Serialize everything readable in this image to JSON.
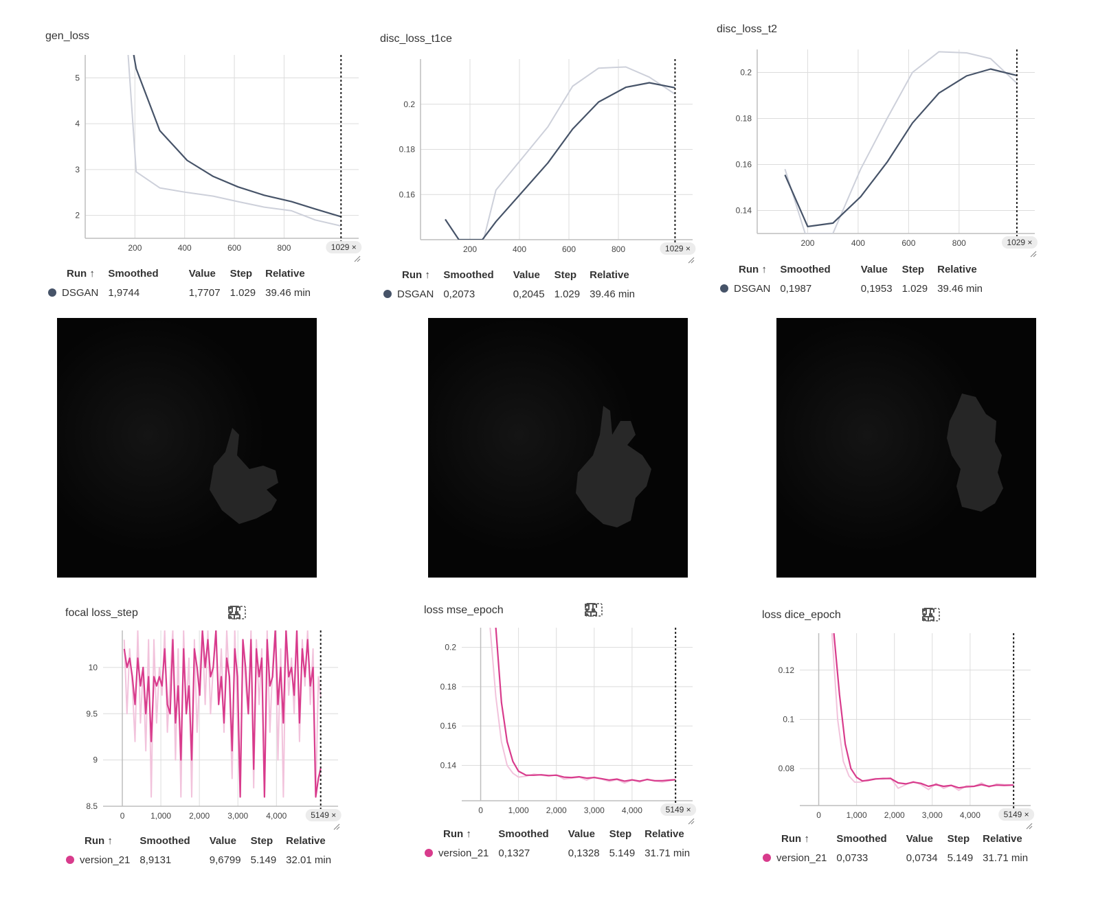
{
  "colors": {
    "dark_line": "#465368",
    "dark_light": "#cdd0da",
    "pink_line": "#d83b8c",
    "pink_light": "#f2c3dc"
  },
  "panels": [
    {
      "id": "gen",
      "title": "gen_loss",
      "step_badge": "1029 ×",
      "stats": {
        "run": "DSGAN",
        "smoothed": "1,9744",
        "value": "1,7707",
        "step": "1.029",
        "relative": "39.46 min"
      }
    },
    {
      "id": "t1ce",
      "title": "disc_loss_t1ce",
      "step_badge": "1029 ×",
      "stats": {
        "run": "DSGAN",
        "smoothed": "0,2073",
        "value": "0,2045",
        "step": "1.029",
        "relative": "39.46 min"
      }
    },
    {
      "id": "t2",
      "title": "disc_loss_t2",
      "step_badge": "1029 ×",
      "stats": {
        "run": "DSGAN",
        "smoothed": "0,1987",
        "value": "0,1953",
        "step": "1.029",
        "relative": "39.46 min"
      }
    },
    {
      "id": "focal",
      "title": "focal loss_step",
      "step_badge": "5149 ×",
      "stats": {
        "run": "version_21",
        "smoothed": "8,9131",
        "value": "9,6799",
        "step": "5.149",
        "relative": "32.01 min"
      }
    },
    {
      "id": "mse",
      "title": "loss mse_epoch",
      "step_badge": "5149 ×",
      "stats": {
        "run": "version_21",
        "smoothed": "0,1327",
        "value": "0,1328",
        "step": "5.149",
        "relative": "31.71 min"
      }
    },
    {
      "id": "dice",
      "title": "loss dice_epoch",
      "step_badge": "5149 ×",
      "stats": {
        "run": "version_21",
        "smoothed": "0,0733",
        "value": "0,0734",
        "step": "5.149",
        "relative": "31.71 min"
      }
    }
  ],
  "table_headers": {
    "run": "Run ↑",
    "smoothed": "Smoothed",
    "value": "Value",
    "step": "Step",
    "relative": "Relative"
  },
  "toolbar_icons": [
    "fit-domain-icon",
    "pin-icon",
    "fullscreen-icon",
    "more-vert-icon"
  ],
  "chart_data": [
    {
      "type": "line",
      "title": "gen_loss",
      "xlim": [
        0,
        1100
      ],
      "ylim": [
        1.5,
        5.5
      ],
      "xticks": [
        200,
        400,
        600,
        800
      ],
      "yticks": [
        2,
        3,
        4,
        5
      ],
      "series": [
        {
          "name": "DSGAN",
          "role": "raw",
          "x": [
            160,
            205,
            300,
            410,
            515,
            615,
            720,
            830,
            925,
            1029
          ],
          "y": [
            6.5,
            2.95,
            2.6,
            2.5,
            2.42,
            2.3,
            2.18,
            2.1,
            1.9,
            1.77
          ]
        },
        {
          "name": "DSGAN",
          "role": "smoothed",
          "x": [
            195,
            205,
            300,
            410,
            515,
            615,
            720,
            830,
            925,
            1029
          ],
          "y": [
            5.5,
            5.2,
            3.85,
            3.2,
            2.85,
            2.62,
            2.44,
            2.3,
            2.14,
            1.97
          ]
        }
      ],
      "marker_step": 1029
    },
    {
      "type": "line",
      "title": "disc_loss_t1ce",
      "xlim": [
        0,
        1100
      ],
      "ylim": [
        0.14,
        0.22
      ],
      "xticks": [
        200,
        400,
        600,
        800
      ],
      "yticks": [
        0.16,
        0.18,
        0.2
      ],
      "series": [
        {
          "name": "DSGAN",
          "role": "raw",
          "x": [
            255,
            305,
            410,
            515,
            615,
            720,
            830,
            925,
            1029
          ],
          "y": [
            0.14,
            0.162,
            0.176,
            0.19,
            0.208,
            0.216,
            0.2165,
            0.212,
            0.2045
          ]
        },
        {
          "name": "DSGAN",
          "role": "smoothed",
          "x": [
            100,
            155,
            250,
            305,
            410,
            515,
            615,
            720,
            830,
            925,
            1029
          ],
          "y": [
            0.149,
            0.14,
            0.14,
            0.148,
            0.161,
            0.174,
            0.189,
            0.201,
            0.2075,
            0.2095,
            0.2073
          ]
        }
      ],
      "marker_step": 1029
    },
    {
      "type": "line",
      "title": "disc_loss_t2",
      "xlim": [
        0,
        1100
      ],
      "ylim": [
        0.13,
        0.21
      ],
      "xticks": [
        200,
        400,
        600,
        800
      ],
      "yticks": [
        0.14,
        0.16,
        0.18,
        0.2
      ],
      "series": [
        {
          "name": "DSGAN",
          "role": "raw",
          "x": [
            110,
            190,
            300,
            410,
            515,
            615,
            720,
            830,
            925,
            1029
          ],
          "y": [
            0.158,
            0.13,
            0.13,
            0.158,
            0.18,
            0.2,
            0.209,
            0.2085,
            0.206,
            0.1953
          ]
        },
        {
          "name": "DSGAN",
          "role": "smoothed",
          "x": [
            110,
            200,
            300,
            410,
            515,
            615,
            720,
            830,
            925,
            1029
          ],
          "y": [
            0.1555,
            0.133,
            0.1345,
            0.146,
            0.161,
            0.178,
            0.191,
            0.1985,
            0.2015,
            0.1987
          ]
        }
      ],
      "marker_step": 1029
    },
    {
      "type": "line",
      "title": "focal loss_step",
      "xlim": [
        -500,
        5600
      ],
      "ylim": [
        8.5,
        10.4
      ],
      "xticks": [
        0,
        1000,
        2000,
        3000,
        4000
      ],
      "yticks": [
        8.5,
        9,
        9.5,
        10
      ],
      "series": [
        {
          "name": "version_21",
          "role": "raw",
          "x": [
            50,
            120,
            190,
            260,
            330,
            400,
            470,
            540,
            610,
            680,
            750,
            820,
            890,
            960,
            1030,
            1100,
            1170,
            1240,
            1310,
            1380,
            1450,
            1520,
            1590,
            1660,
            1730,
            1800,
            1870,
            1940,
            2010,
            2080,
            2150,
            2220,
            2290,
            2360,
            2430,
            2500,
            2570,
            2640,
            2710,
            2780,
            2850,
            2920,
            2990,
            3060,
            3130,
            3200,
            3270,
            3340,
            3410,
            3480,
            3550,
            3620,
            3690,
            3760,
            3830,
            3900,
            3970,
            4040,
            4110,
            4180,
            4250,
            4320,
            4390,
            4460,
            4530,
            4600,
            4670,
            4740,
            4810,
            4880,
            4950,
            5020,
            5090,
            5149
          ],
          "y": [
            10.3,
            9.5,
            10.2,
            9.8,
            9.2,
            10.4,
            9.4,
            10.0,
            9.1,
            10.3,
            8.6,
            10.3,
            9.4,
            10.0,
            9.7,
            10.4,
            9.3,
            9.9,
            10.4,
            9.0,
            10.2,
            8.6,
            10.4,
            9.5,
            10.1,
            8.6,
            10.3,
            9.3,
            9.9,
            10.4,
            9.6,
            10.4,
            9.5,
            10.0,
            10.4,
            9.6,
            10.2,
            9.3,
            10.4,
            9.8,
            8.8,
            10.4,
            9.4,
            8.6,
            10.3,
            9.8,
            9.5,
            10.4,
            8.7,
            10.3,
            9.6,
            10.2,
            8.6,
            10.4,
            9.3,
            10.0,
            10.4,
            9.0,
            10.2,
            8.6,
            10.4,
            9.7,
            10.1,
            9.5,
            10.4,
            9.2,
            10.3,
            9.8,
            10.4,
            9.6,
            10.2,
            8.6,
            9.9,
            9.68
          ]
        },
        {
          "name": "version_21",
          "role": "smoothed",
          "x": [
            50,
            120,
            190,
            260,
            330,
            400,
            470,
            540,
            610,
            680,
            750,
            820,
            890,
            960,
            1030,
            1100,
            1170,
            1240,
            1310,
            1380,
            1450,
            1520,
            1590,
            1660,
            1730,
            1800,
            1870,
            1940,
            2010,
            2080,
            2150,
            2220,
            2290,
            2360,
            2430,
            2500,
            2570,
            2640,
            2710,
            2780,
            2850,
            2920,
            2990,
            3060,
            3130,
            3200,
            3270,
            3340,
            3410,
            3480,
            3550,
            3620,
            3690,
            3760,
            3830,
            3900,
            3970,
            4040,
            4110,
            4180,
            4250,
            4320,
            4390,
            4460,
            4530,
            4600,
            4670,
            4740,
            4810,
            4880,
            4950,
            5020,
            5090,
            5149
          ],
          "y": [
            10.2,
            10.0,
            10.1,
            9.9,
            9.6,
            10.1,
            9.8,
            10.0,
            9.5,
            9.9,
            9.2,
            9.9,
            9.8,
            9.9,
            9.8,
            10.2,
            9.6,
            9.5,
            10.3,
            9.4,
            9.8,
            9.0,
            10.2,
            9.5,
            9.8,
            9.0,
            10.2,
            10.0,
            9.7,
            10.4,
            10.0,
            10.3,
            9.9,
            10.0,
            10.4,
            9.6,
            9.9,
            9.4,
            10.1,
            9.9,
            9.1,
            10.2,
            9.9,
            8.6,
            10.3,
            10.0,
            9.5,
            10.3,
            8.9,
            10.2,
            9.9,
            10.1,
            8.6,
            10.3,
            9.8,
            9.9,
            10.4,
            9.6,
            10.0,
            9.4,
            10.4,
            9.9,
            10.0,
            9.7,
            10.4,
            9.4,
            10.2,
            9.9,
            10.3,
            9.8,
            10.0,
            8.6,
            8.8,
            8.91
          ]
        }
      ],
      "marker_step": 5149
    },
    {
      "type": "line",
      "title": "loss mse_epoch",
      "xlim": [
        -500,
        5600
      ],
      "ylim": [
        0.122,
        0.21
      ],
      "xticks": [
        0,
        1000,
        2000,
        3000,
        4000
      ],
      "yticks": [
        0.14,
        0.16,
        0.18,
        0.2
      ],
      "series": [
        {
          "name": "version_21",
          "role": "raw",
          "x": [
            250,
            400,
            550,
            700,
            850,
            1000,
            1200,
            1400,
            1600,
            1800,
            2000,
            2200,
            2400,
            2600,
            2800,
            3000,
            3200,
            3400,
            3600,
            3800,
            4000,
            4200,
            4400,
            4600,
            4800,
            5000,
            5149
          ],
          "y": [
            0.21,
            0.175,
            0.152,
            0.14,
            0.136,
            0.134,
            0.1345,
            0.1355,
            0.135,
            0.1345,
            0.1352,
            0.133,
            0.1335,
            0.134,
            0.1325,
            0.134,
            0.133,
            0.1318,
            0.1328,
            0.131,
            0.1325,
            0.1315,
            0.133,
            0.132,
            0.1315,
            0.1322,
            0.1328
          ]
        },
        {
          "name": "version_21",
          "role": "smoothed",
          "x": [
            400,
            550,
            700,
            850,
            1000,
            1200,
            1400,
            1600,
            1800,
            2000,
            2200,
            2400,
            2600,
            2800,
            3000,
            3200,
            3400,
            3600,
            3800,
            4000,
            4200,
            4400,
            4600,
            4800,
            5000,
            5149
          ],
          "y": [
            0.21,
            0.172,
            0.152,
            0.142,
            0.137,
            0.135,
            0.135,
            0.1352,
            0.1348,
            0.135,
            0.134,
            0.1338,
            0.1342,
            0.1335,
            0.1338,
            0.1332,
            0.1325,
            0.133,
            0.132,
            0.1326,
            0.132,
            0.1328,
            0.1322,
            0.1322,
            0.1325,
            0.1327
          ]
        }
      ],
      "marker_step": 5149
    },
    {
      "type": "line",
      "title": "loss dice_epoch",
      "xlim": [
        -500,
        5600
      ],
      "ylim": [
        0.065,
        0.135
      ],
      "xticks": [
        0,
        1000,
        2000,
        3000,
        4000
      ],
      "yticks": [
        0.08,
        0.1,
        0.12
      ],
      "series": [
        {
          "name": "version_21",
          "role": "raw",
          "x": [
            350,
            500,
            650,
            800,
            950,
            1100,
            1300,
            1500,
            1700,
            1900,
            2100,
            2300,
            2500,
            2700,
            2900,
            3100,
            3300,
            3500,
            3700,
            3900,
            4100,
            4300,
            4500,
            4700,
            4900,
            5149
          ],
          "y": [
            0.135,
            0.1,
            0.083,
            0.077,
            0.0745,
            0.0745,
            0.0755,
            0.076,
            0.0758,
            0.0762,
            0.072,
            0.0735,
            0.0748,
            0.0735,
            0.0715,
            0.074,
            0.072,
            0.0732,
            0.0712,
            0.073,
            0.0728,
            0.0742,
            0.0725,
            0.0738,
            0.0735,
            0.0734
          ]
        },
        {
          "name": "version_21",
          "role": "smoothed",
          "x": [
            400,
            550,
            700,
            850,
            1000,
            1150,
            1300,
            1500,
            1700,
            1900,
            2100,
            2300,
            2500,
            2700,
            2900,
            3100,
            3300,
            3500,
            3700,
            3900,
            4100,
            4300,
            4500,
            4700,
            4900,
            5149
          ],
          "y": [
            0.135,
            0.11,
            0.09,
            0.08,
            0.0765,
            0.075,
            0.0752,
            0.0758,
            0.076,
            0.076,
            0.0742,
            0.0738,
            0.0745,
            0.074,
            0.0728,
            0.0735,
            0.0728,
            0.0732,
            0.0722,
            0.0726,
            0.0728,
            0.0735,
            0.0728,
            0.0733,
            0.0732,
            0.0733
          ]
        }
      ],
      "marker_step": 5149
    }
  ]
}
